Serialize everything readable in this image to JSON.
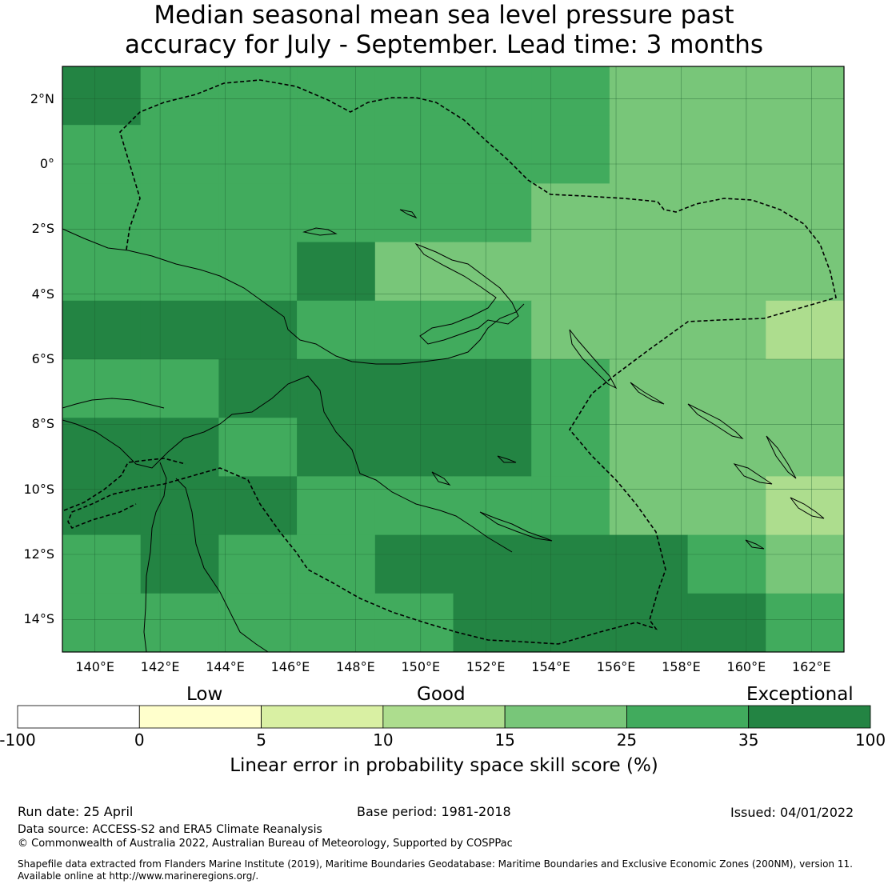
{
  "title_line1": "Median seasonal mean sea level pressure past",
  "title_line2": "accuracy for July - September. Lead time: 3 months",
  "map": {
    "lon_range": [
      139,
      163
    ],
    "lat_range": [
      -15,
      3
    ],
    "lat_ticks": [
      {
        "value": 2,
        "label": "2°N"
      },
      {
        "value": 0,
        "label": "0°"
      },
      {
        "value": -2,
        "label": "2°S"
      },
      {
        "value": -4,
        "label": "4°S"
      },
      {
        "value": -6,
        "label": "6°S"
      },
      {
        "value": -8,
        "label": "8°S"
      },
      {
        "value": -10,
        "label": "10°S"
      },
      {
        "value": -12,
        "label": "12°S"
      },
      {
        "value": -14,
        "label": "14°S"
      }
    ],
    "lon_ticks": [
      {
        "value": 140,
        "label": "140°E"
      },
      {
        "value": 142,
        "label": "142°E"
      },
      {
        "value": 144,
        "label": "144°E"
      },
      {
        "value": 146,
        "label": "146°E"
      },
      {
        "value": 148,
        "label": "148°E"
      },
      {
        "value": 150,
        "label": "150°E"
      },
      {
        "value": 152,
        "label": "152°E"
      },
      {
        "value": 154,
        "label": "154°E"
      },
      {
        "value": 156,
        "label": "156°E"
      },
      {
        "value": 158,
        "label": "158°E"
      },
      {
        "value": 160,
        "label": "160°E"
      },
      {
        "value": 162,
        "label": "162°E"
      }
    ],
    "skill_grid_columns": [
      "139.0-141.4",
      "141.4-143.8",
      "143.8-146.2",
      "146.2-148.6",
      "148.6-151.0",
      "151.0-153.4",
      "153.4-155.8",
      "155.8-158.2",
      "158.2-160.6",
      "160.6-163.0"
    ],
    "skill_grid_rows": [
      "3.0 to 1.2",
      "1.2 to -0.6",
      "-0.6 to -2.4",
      "-2.4 to -4.2",
      "-4.2 to -6.0",
      "-6.0 to -7.8",
      "-7.8 to -9.6",
      "-9.6 to -11.4",
      "-11.4 to -13.2",
      "-13.2 to -15.0"
    ],
    "skill_grid_category": [
      [
        6,
        5,
        5,
        5,
        5,
        5,
        5,
        4,
        4,
        4
      ],
      [
        5,
        5,
        5,
        5,
        5,
        5,
        5,
        4,
        4,
        4
      ],
      [
        5,
        5,
        5,
        5,
        5,
        5,
        4,
        4,
        4,
        4
      ],
      [
        5,
        5,
        5,
        6,
        4,
        4,
        4,
        4,
        4,
        4
      ],
      [
        6,
        6,
        6,
        5,
        5,
        5,
        4,
        4,
        4,
        3
      ],
      [
        5,
        5,
        6,
        6,
        6,
        6,
        5,
        4,
        4,
        4
      ],
      [
        6,
        6,
        5,
        6,
        6,
        6,
        5,
        4,
        4,
        4
      ],
      [
        6,
        6,
        6,
        5,
        5,
        5,
        5,
        4,
        4,
        3
      ],
      [
        5,
        6,
        5,
        5,
        6,
        6,
        6,
        6,
        5,
        4
      ],
      [
        5,
        5,
        5,
        5,
        5,
        6,
        6,
        6,
        6,
        5
      ]
    ]
  },
  "colorbar": {
    "category_labels": [
      {
        "label": "Low"
      },
      {
        "label": "Good"
      },
      {
        "label": "Exceptional"
      }
    ],
    "bins": [
      {
        "from": "-100",
        "to": "0",
        "color": "#ffffff"
      },
      {
        "from": "0",
        "to": "5",
        "color": "#ffffcc"
      },
      {
        "from": "5",
        "to": "10",
        "color": "#d9f0a3"
      },
      {
        "from": "10",
        "to": "15",
        "color": "#addd8e"
      },
      {
        "from": "15",
        "to": "25",
        "color": "#78c679"
      },
      {
        "from": "25",
        "to": "35",
        "color": "#41ab5d"
      },
      {
        "from": "35",
        "to": "100",
        "color": "#238443"
      }
    ],
    "tick_labels": [
      "-100",
      "0",
      "5",
      "10",
      "15",
      "25",
      "35",
      "100"
    ],
    "title": "Linear error in probability space skill score (%)"
  },
  "footer": {
    "run_date": "Run date: 25 April",
    "base_period": "Base period: 1981-2018",
    "issued": "Issued: 04/01/2022",
    "data_source": "Data source: ACCESS-S2 and ERA5 Climate Reanalysis",
    "copyright": "© Commonwealth of Australia 2022, Australian Bureau of Meteorology, Supported by COSPPac",
    "shapefile_line1": "Shapefile data extracted from Flanders Marine Institute (2019), Maritime Boundaries Geodatabase: Maritime Boundaries and Exclusive Economic Zones (200NM), version 11.",
    "shapefile_line2": "Available online at http://www.marineregions.org/."
  }
}
